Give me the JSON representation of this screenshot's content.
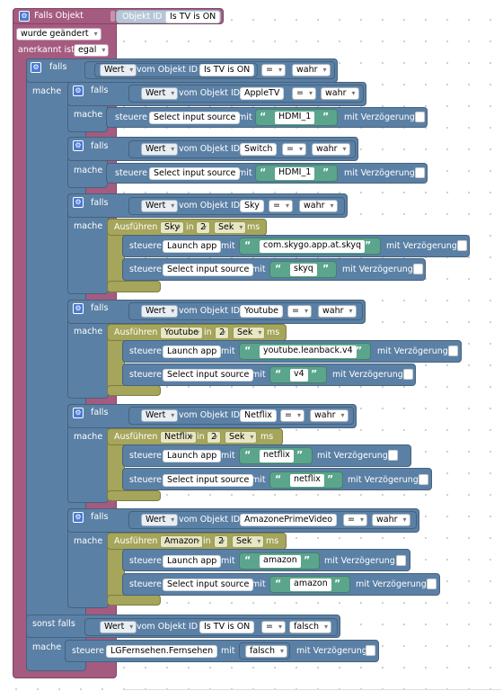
{
  "trigger": {
    "title": "Falls Objekt",
    "oid_label": "Objekt ID",
    "oid_value": "Is TV is ON",
    "changed": "wurde geändert",
    "ack_label": "anerkannt ist",
    "ack_value": "egal"
  },
  "words": {
    "if": "falls",
    "do": "mache",
    "else_if": "sonst falls",
    "value": "Wert",
    "of_object": "vom Objekt ID",
    "control": "steuere",
    "with": "mit",
    "delay": "mit Verzögerung",
    "execute": "Ausführen",
    "in": "in",
    "sec": "Sek",
    "ms": "ms",
    "op": "=",
    "open_q": "“",
    "close_q": "”"
  },
  "main_if": {
    "oid": "Is TV is ON",
    "compare": "wahr"
  },
  "inner": [
    {
      "oid": "AppleTV",
      "compare": "wahr",
      "target": "Select input source",
      "value": "HDMI_1"
    },
    {
      "oid": "Switch",
      "compare": "wahr",
      "target": "Select input source",
      "value": "HDMI_1"
    },
    {
      "oid": "Sky",
      "compare": "wahr",
      "exec": "Sky",
      "delay": "2",
      "app": "com.skygo.app.at.skyq",
      "src": "skyq"
    },
    {
      "oid": "Youtube",
      "compare": "wahr",
      "exec": "Youtube",
      "delay": "2",
      "app": "youtube.leanback.v4",
      "src": "v4"
    },
    {
      "oid": "Netflix",
      "compare": "wahr",
      "exec": "Netflix",
      "delay": "2",
      "app": "netflix",
      "src": "netflix"
    },
    {
      "oid": "AmazonePrimeVideo",
      "compare": "wahr",
      "exec": "Amazon",
      "delay": "2",
      "app": "amazon",
      "src": "amazon"
    }
  ],
  "launch_target": "Launch app",
  "source_target": "Select input source",
  "else_if": {
    "oid": "Is TV is ON",
    "compare": "falsch",
    "target": "LGFernsehen.Fernsehen",
    "value": "falsch"
  }
}
